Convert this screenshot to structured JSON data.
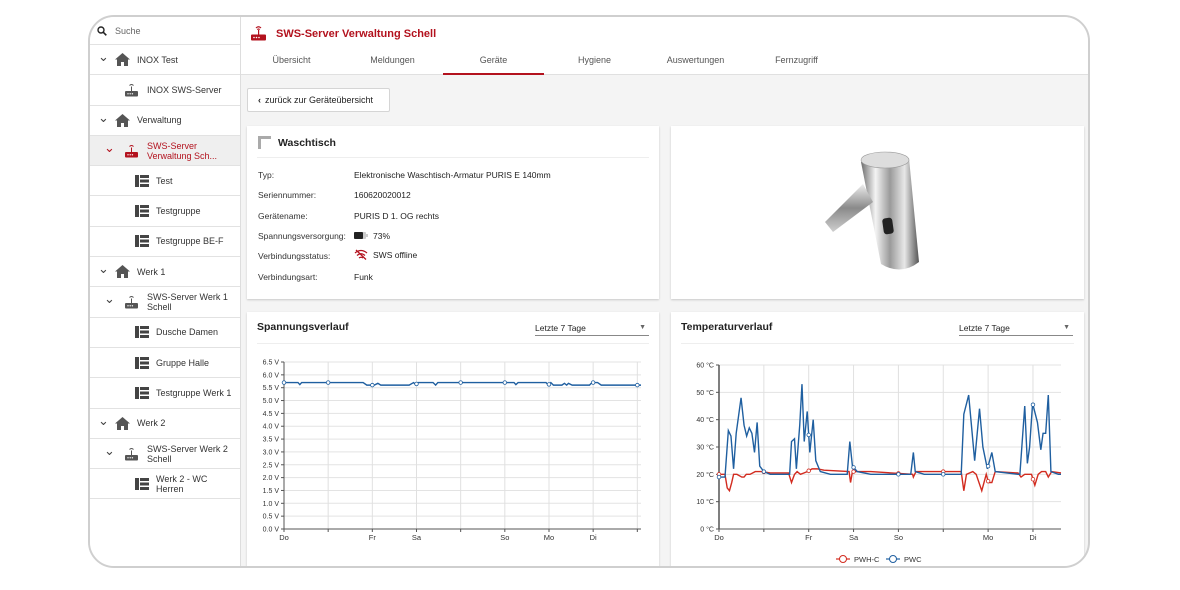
{
  "sidebar": {
    "search_placeholder": "Suche",
    "items": [
      {
        "label": "INOX Test",
        "type": "site",
        "level": 0,
        "expanded": true
      },
      {
        "label": "INOX SWS-Server",
        "type": "server",
        "level": 1
      },
      {
        "label": "Verwaltung",
        "type": "site",
        "level": 0,
        "expanded": true
      },
      {
        "label": "SWS-Server Verwaltung Sch...",
        "type": "server",
        "level": 1,
        "expanded": true,
        "selected": true
      },
      {
        "label": "Test",
        "type": "group",
        "level": 2
      },
      {
        "label": "Testgruppe",
        "type": "group",
        "level": 2
      },
      {
        "label": "Testgruppe BE-F",
        "type": "group",
        "level": 2
      },
      {
        "label": "Werk 1",
        "type": "site",
        "level": 0,
        "expanded": true
      },
      {
        "label": "SWS-Server Werk 1 Schell",
        "type": "server",
        "level": 1,
        "expanded": true
      },
      {
        "label": "Dusche Damen",
        "type": "group",
        "level": 2
      },
      {
        "label": "Gruppe Halle",
        "type": "group",
        "level": 2
      },
      {
        "label": "Testgruppe Werk 1",
        "type": "group",
        "level": 2
      },
      {
        "label": "Werk 2",
        "type": "site",
        "level": 0,
        "expanded": true
      },
      {
        "label": "SWS-Server Werk 2 Schell",
        "type": "server",
        "level": 1,
        "expanded": true
      },
      {
        "label": "Werk 2 - WC Herren",
        "type": "group",
        "level": 2
      }
    ]
  },
  "header": {
    "title": "SWS-Server Verwaltung Schell",
    "tabs": [
      {
        "label": "Übersicht"
      },
      {
        "label": "Meldungen"
      },
      {
        "label": "Geräte",
        "active": true
      },
      {
        "label": "Hygiene"
      },
      {
        "label": "Auswertungen"
      },
      {
        "label": "Fernzugriff"
      }
    ]
  },
  "back_button": "zurück zur Geräteübersicht",
  "device": {
    "title": "Waschtisch",
    "rows": [
      {
        "label": "Typ:",
        "value": "Elektronische Waschtisch-Armatur PURIS E 140mm"
      },
      {
        "label": "Seriennummer:",
        "value": "160620020012"
      },
      {
        "label": "Gerätename:",
        "value": "PURIS D 1. OG rechts"
      },
      {
        "label": "Spannungsversorgung:",
        "value": "73%",
        "icon": "battery-icon"
      },
      {
        "label": "Verbindungsstatus:",
        "value": "SWS offline",
        "icon": "wifi-off-icon"
      },
      {
        "label": "Verbindungsart:",
        "value": "Funk"
      }
    ]
  },
  "colors": {
    "accent": "#b3121e",
    "series_blue": "#1f5fa0",
    "series_red": "#d22b1f"
  },
  "chart_data": [
    {
      "type": "line",
      "title": "Spannungsverlauf",
      "range_select": "Letzte 7 Tage",
      "x_unit": "hours since Do 00:00",
      "xlim": [
        0,
        97
      ],
      "ylim": [
        0,
        6.5
      ],
      "y_ticks": [
        "0.0 V",
        "0.5 V",
        "1.0 V",
        "1.5 V",
        "2.0 V",
        "2.5 V",
        "3.0 V",
        "3.5 V",
        "4.0 V",
        "4.5 V",
        "5.0 V",
        "5.5 V",
        "6.0 V",
        "6.5 V"
      ],
      "x_ticks": [
        {
          "x": 0,
          "label": "Do"
        },
        {
          "x": 12,
          "label": ""
        },
        {
          "x": 24,
          "label": "Fr"
        },
        {
          "x": 36,
          "label": "Sa"
        },
        {
          "x": 48,
          "label": ""
        },
        {
          "x": 60,
          "label": "So"
        },
        {
          "x": 72,
          "label": "Mo"
        },
        {
          "x": 84,
          "label": "Di"
        },
        {
          "x": 96,
          "label": ""
        }
      ],
      "series": [
        {
          "name": "Spannung",
          "color": "#1f5fa0",
          "points": [
            [
              0,
              5.7
            ],
            [
              3.8,
              5.7
            ],
            [
              4.3,
              5.62
            ],
            [
              4.8,
              5.7
            ],
            [
              21.5,
              5.7
            ],
            [
              22.5,
              5.6
            ],
            [
              24.5,
              5.6
            ],
            [
              25.5,
              5.67
            ],
            [
              26.3,
              5.6
            ],
            [
              34,
              5.6
            ],
            [
              35.2,
              5.7
            ],
            [
              35.8,
              5.62
            ],
            [
              36.4,
              5.7
            ],
            [
              40.5,
              5.7
            ],
            [
              41.2,
              5.6
            ],
            [
              41.8,
              5.7
            ],
            [
              62.5,
              5.7
            ],
            [
              63,
              5.62
            ],
            [
              63.6,
              5.7
            ],
            [
              71.2,
              5.7
            ],
            [
              71.8,
              5.6
            ],
            [
              72.5,
              5.7
            ],
            [
              73.2,
              5.6
            ],
            [
              75.5,
              5.6
            ],
            [
              76.2,
              5.67
            ],
            [
              76.8,
              5.6
            ],
            [
              77.3,
              5.67
            ],
            [
              78.3,
              5.6
            ],
            [
              83,
              5.6
            ],
            [
              83.7,
              5.7
            ],
            [
              85.2,
              5.7
            ],
            [
              86.2,
              5.6
            ],
            [
              97,
              5.6
            ]
          ]
        }
      ],
      "legend": "none"
    },
    {
      "type": "line",
      "title": "Temperaturverlauf",
      "range_select": "Letzte 7 Tage",
      "x_unit": "hours since Do 00:00",
      "xlim": [
        0,
        91.5
      ],
      "ylim": [
        0,
        60
      ],
      "y_ticks": [
        "0 °C",
        "10 °C",
        "20 °C",
        "30 °C",
        "40 °C",
        "50 °C",
        "60 °C"
      ],
      "x_ticks": [
        {
          "x": 0,
          "label": "Do"
        },
        {
          "x": 12,
          "label": ""
        },
        {
          "x": 24,
          "label": "Fr"
        },
        {
          "x": 36,
          "label": "Sa"
        },
        {
          "x": 48,
          "label": "So"
        },
        {
          "x": 60,
          "label": ""
        },
        {
          "x": 72,
          "label": "Mo"
        },
        {
          "x": 84,
          "label": "Di"
        }
      ],
      "series": [
        {
          "name": "PWH-C",
          "color": "#d22b1f",
          "points": [
            [
              0,
              20
            ],
            [
              1.6,
              20
            ],
            [
              2.2,
              15
            ],
            [
              2.8,
              14
            ],
            [
              3.4,
              17
            ],
            [
              3.9,
              20
            ],
            [
              4.8,
              20
            ],
            [
              6.1,
              19
            ],
            [
              6.7,
              19
            ],
            [
              7.3,
              20
            ],
            [
              8.3,
              20
            ],
            [
              9.7,
              21
            ],
            [
              11.5,
              21
            ],
            [
              13.7,
              20.5
            ],
            [
              18.6,
              20.5
            ],
            [
              19.4,
              17
            ],
            [
              20.2,
              20
            ],
            [
              20.9,
              21
            ],
            [
              21.8,
              20
            ],
            [
              22.7,
              20.5
            ],
            [
              23.6,
              21
            ],
            [
              24.9,
              22
            ],
            [
              26.3,
              22
            ],
            [
              28.1,
              21.5
            ],
            [
              34.8,
              21
            ],
            [
              35.2,
              17
            ],
            [
              35.7,
              21
            ],
            [
              40.6,
              21
            ],
            [
              51.8,
              20
            ],
            [
              52,
              19
            ],
            [
              52.7,
              21
            ],
            [
              64.8,
              21
            ],
            [
              65.5,
              14
            ],
            [
              66.2,
              20
            ],
            [
              67.9,
              21
            ],
            [
              68.8,
              20
            ],
            [
              70.3,
              14
            ],
            [
              71.5,
              20
            ],
            [
              72.1,
              17
            ],
            [
              73,
              17
            ],
            [
              73.9,
              21
            ],
            [
              80,
              20.5
            ],
            [
              80.8,
              19
            ],
            [
              81.8,
              20
            ],
            [
              83.6,
              20
            ],
            [
              84.5,
              16
            ],
            [
              85.4,
              20
            ],
            [
              86.3,
              21
            ],
            [
              87.4,
              21
            ],
            [
              88.1,
              19
            ],
            [
              89,
              21
            ],
            [
              91.5,
              20.5
            ]
          ]
        },
        {
          "name": "PWC",
          "color": "#1f5fa0",
          "points": [
            [
              0,
              19
            ],
            [
              1.6,
              19
            ],
            [
              2.5,
              36
            ],
            [
              3.2,
              34
            ],
            [
              3.9,
              22
            ],
            [
              4.6,
              35
            ],
            [
              5.9,
              48
            ],
            [
              6.7,
              38
            ],
            [
              7.4,
              34
            ],
            [
              8.1,
              37
            ],
            [
              8.8,
              35
            ],
            [
              9.5,
              28
            ],
            [
              10.2,
              39
            ],
            [
              10.9,
              23
            ],
            [
              12,
              21
            ],
            [
              13.7,
              20
            ],
            [
              18.9,
              20
            ],
            [
              19.4,
              32
            ],
            [
              20.2,
              33
            ],
            [
              20.7,
              22
            ],
            [
              21.6,
              38
            ],
            [
              22.2,
              53
            ],
            [
              22.8,
              32
            ],
            [
              23.6,
              43
            ],
            [
              24.3,
              28
            ],
            [
              25.2,
              40
            ],
            [
              25.9,
              25
            ],
            [
              27.1,
              21
            ],
            [
              29.8,
              20
            ],
            [
              34.3,
              20
            ],
            [
              35,
              32
            ],
            [
              35.7,
              23
            ],
            [
              37,
              21
            ],
            [
              40.6,
              20
            ],
            [
              47.8,
              20
            ],
            [
              51.3,
              20
            ],
            [
              52,
              28
            ],
            [
              52.5,
              21
            ],
            [
              54.9,
              20
            ],
            [
              64.8,
              20
            ],
            [
              65.5,
              42
            ],
            [
              66.8,
              49
            ],
            [
              68.4,
              25
            ],
            [
              69.7,
              44
            ],
            [
              70.6,
              30
            ],
            [
              71.8,
              22
            ],
            [
              73,
              28
            ],
            [
              73.9,
              21
            ],
            [
              80,
              20
            ],
            [
              80.5,
              20
            ],
            [
              81.8,
              45
            ],
            [
              82.5,
              24
            ],
            [
              83.1,
              30
            ],
            [
              83.9,
              46
            ],
            [
              85.2,
              39
            ],
            [
              86.1,
              29
            ],
            [
              86.7,
              35
            ],
            [
              87.4,
              35
            ],
            [
              88.1,
              49
            ],
            [
              88.8,
              21
            ],
            [
              90.8,
              20
            ],
            [
              91.5,
              20
            ]
          ]
        }
      ],
      "legend": "bottom-center"
    }
  ]
}
